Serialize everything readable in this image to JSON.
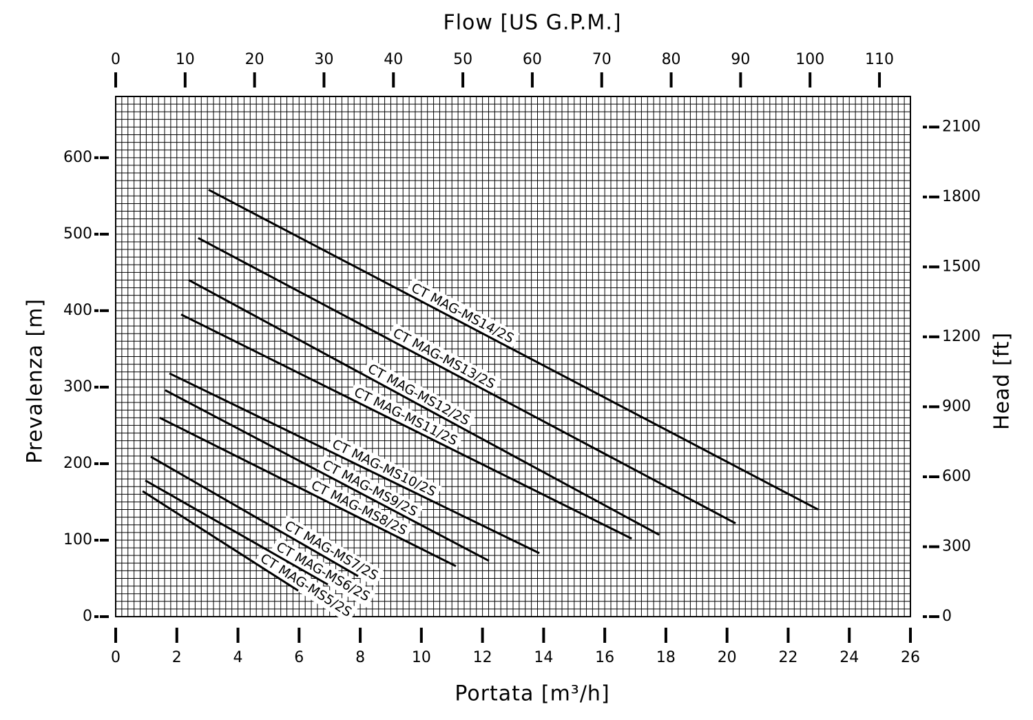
{
  "chart_data": {
    "type": "line",
    "xlabel": "Portata   [m³/h]",
    "ylabel": "Prevalenza  [m]",
    "x2label": "Flow   [US G.P.M.]",
    "y2label": "Head  [ft]",
    "xlim": [
      0,
      26
    ],
    "ylim": [
      0,
      680
    ],
    "x2lim": [
      0,
      114.46
    ],
    "y2lim": [
      0,
      2231
    ],
    "xticks": [
      0,
      2,
      4,
      6,
      8,
      10,
      12,
      14,
      16,
      18,
      20,
      22,
      24,
      26
    ],
    "yticks": [
      0,
      100,
      200,
      300,
      400,
      500,
      600
    ],
    "x2ticks": [
      0,
      10,
      20,
      30,
      40,
      50,
      60,
      70,
      80,
      90,
      100,
      110
    ],
    "y2ticks": [
      0,
      300,
      600,
      900,
      1200,
      1500,
      1800,
      2100
    ],
    "grid": true,
    "grid_step_x": 0.2,
    "grid_step_y": 10,
    "series": [
      {
        "name": "CT MAG-MS14/2S",
        "color": "#000000",
        "x": [
          3.04,
          22.98
        ],
        "values": [
          558,
          140
        ]
      },
      {
        "name": "CT MAG-MS13/2S",
        "color": "#000000",
        "x": [
          2.7,
          20.28
        ],
        "values": [
          495,
          122
        ]
      },
      {
        "name": "CT MAG-MS12/2S",
        "color": "#000000",
        "x": [
          2.39,
          17.78
        ],
        "values": [
          440,
          107
        ]
      },
      {
        "name": "CT MAG-MS11/2S",
        "color": "#000000",
        "x": [
          2.14,
          16.88
        ],
        "values": [
          395,
          102
        ]
      },
      {
        "name": "CT MAG-MS10/2S",
        "color": "#000000",
        "x": [
          1.76,
          13.86
        ],
        "values": [
          318,
          83
        ]
      },
      {
        "name": "CT MAG-MS9/2S",
        "color": "#000000",
        "x": [
          1.62,
          12.21
        ],
        "values": [
          296,
          73
        ]
      },
      {
        "name": "CT MAG-MS8/2S",
        "color": "#000000",
        "x": [
          1.44,
          11.13
        ],
        "values": [
          260,
          66
        ]
      },
      {
        "name": "CT MAG-MS7/2S",
        "color": "#000000",
        "x": [
          1.15,
          7.93
        ],
        "values": [
          209,
          53
        ]
      },
      {
        "name": "CT MAG-MS6/2S",
        "color": "#000000",
        "x": [
          0.97,
          6.94
        ],
        "values": [
          178,
          42
        ]
      },
      {
        "name": "CT MAG-MS5/2S",
        "color": "#000000",
        "x": [
          0.88,
          5.97
        ],
        "values": [
          164,
          34
        ]
      }
    ]
  }
}
